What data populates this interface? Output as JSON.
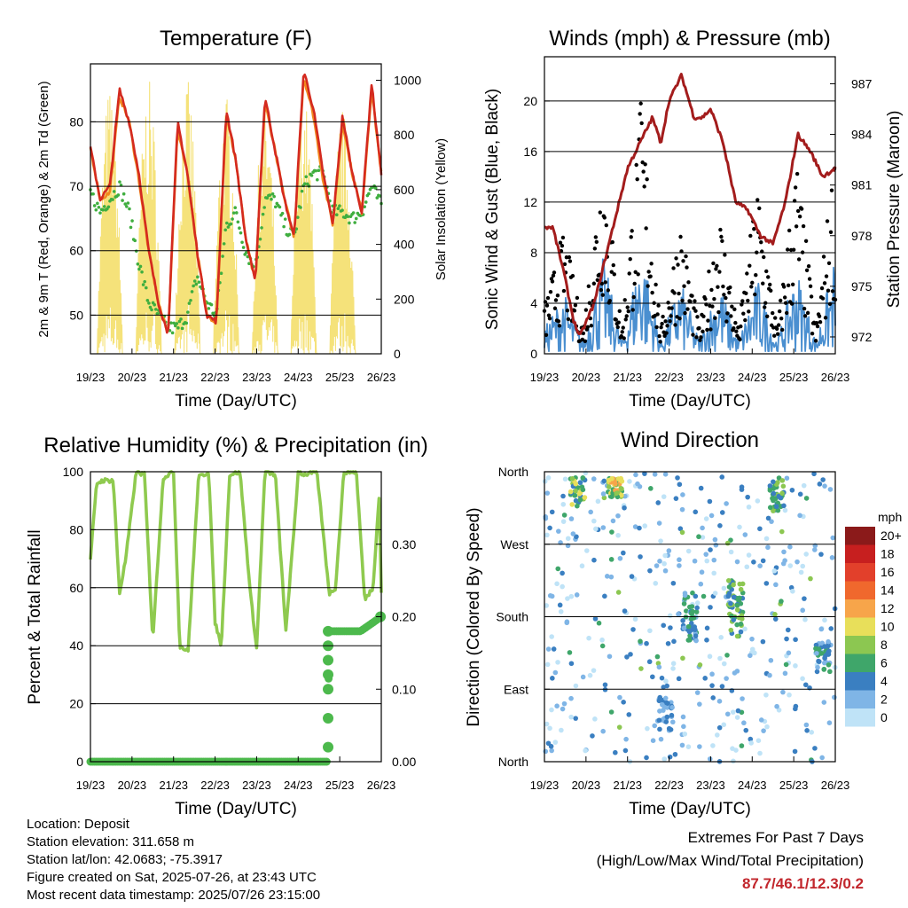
{
  "panels": {
    "temperature": {
      "title": "Temperature (F)",
      "ylabel_left": "2m & 9m T (Red, Orange) & 2m Td (Green)",
      "ylabel_right": "Solar Insolation (Yellow)",
      "xlabel": "Time (Day/UTC)"
    },
    "winds": {
      "title": "Winds (mph) & Pressure (mb)",
      "ylabel_left": "Sonic Wind & Gust (Blue, Black)",
      "ylabel_right": "Station Pressure (Maroon)",
      "xlabel": "Time (Day/UTC)"
    },
    "humidity": {
      "title": "Relative Humidity (%) & Precipitation (in)",
      "ylabel_left": "Percent & Total Rainfall",
      "xlabel": "Time (Day/UTC)"
    },
    "direction": {
      "title": "Wind Direction",
      "ylabel_left": "Direction (Colored By Speed)",
      "xlabel": "Time (Day/UTC)",
      "legend_title": "mph"
    }
  },
  "colors": {
    "temp_2m": "#d42a1f",
    "temp_9m": "#f28a1e",
    "dewpoint": "#3fae3f",
    "solar": "#f5e27a",
    "wind": "#4a8fd0",
    "gust": "#000000",
    "pressure": "#a31c1c",
    "rh": "#8fca4f",
    "precip": "#4cb94c"
  },
  "legend": {
    "labels": [
      "20+",
      "18",
      "16",
      "14",
      "12",
      "10",
      "8",
      "6",
      "4",
      "2",
      "0"
    ],
    "colors": [
      "#8b1a1a",
      "#c71f1f",
      "#e2402b",
      "#f0682d",
      "#f7a54a",
      "#e8df5a",
      "#8cc751",
      "#3fa66a",
      "#3a7fc1",
      "#7fb5e6",
      "#bfe3f7"
    ]
  },
  "footer": {
    "location": "Location: Deposit",
    "elevation": "Station elevation: 311.658 m",
    "latlon": "Station lat/lon: 42.0683; -75.3917",
    "created": "Figure created on Sat, 2025-07-26, at 23:43 UTC",
    "recent": "Most recent data timestamp: 2025/07/26 23:15:00",
    "extremes_title": "Extremes For Past 7 Days",
    "extremes_sub": "(High/Low/Max Wind/Total Precipitation)",
    "extremes_values": "87.7/46.1/12.3/0.2"
  },
  "chart_data": [
    {
      "type": "line",
      "title": "Temperature (F)",
      "xlabel": "Time (Day/UTC)",
      "ylabel": "2m & 9m T (Red, Orange) & 2m Td (Green)",
      "y2label": "Solar Insolation (Yellow)",
      "x_ticks": [
        "19/23",
        "20/23",
        "21/23",
        "22/23",
        "23/23",
        "24/23",
        "25/23",
        "26/23"
      ],
      "y_ticks": [
        50,
        60,
        70,
        80
      ],
      "y2_ticks": [
        0,
        200,
        400,
        600,
        800,
        1000
      ],
      "ylim": [
        44,
        89
      ],
      "y2lim": [
        0,
        1060
      ],
      "grid": true,
      "series": [
        {
          "name": "2m T",
          "values": [
            76,
            68,
            70,
            85,
            80,
            72,
            60,
            52,
            47,
            80,
            72,
            60,
            50,
            49,
            82,
            74,
            62,
            55,
            84,
            76,
            68,
            62,
            88,
            82,
            72,
            64,
            81,
            72,
            66,
            86,
            72
          ]
        },
        {
          "name": "9m T",
          "values": [
            76,
            68,
            69,
            84,
            80,
            71,
            60,
            52,
            47,
            79,
            72,
            60,
            50,
            49,
            81,
            74,
            62,
            55,
            83,
            76,
            68,
            62,
            87,
            81,
            71,
            64,
            80,
            72,
            66,
            85,
            72
          ]
        },
        {
          "name": "2m Td",
          "values": [
            69,
            66,
            68,
            70,
            66,
            58,
            52,
            50,
            48,
            48,
            50,
            56,
            52,
            50,
            64,
            66,
            60,
            57,
            68,
            68,
            64,
            62,
            70,
            72,
            72,
            66,
            66,
            65,
            66,
            70,
            67
          ]
        },
        {
          "name": "Solar Insolation",
          "values": [
            0,
            980,
            0,
            1000,
            0,
            1000,
            0,
            950,
            0,
            920,
            0,
            950,
            0,
            900,
            0,
            0
          ]
        }
      ]
    },
    {
      "type": "scatter",
      "title": "Winds (mph) & Pressure (mb)",
      "xlabel": "Time (Day/UTC)",
      "ylabel": "Sonic Wind & Gust (Blue, Black)",
      "y2label": "Station Pressure (Maroon)",
      "x_ticks": [
        "19/23",
        "20/23",
        "21/23",
        "22/23",
        "23/23",
        "24/23",
        "25/23",
        "26/23"
      ],
      "y_ticks": [
        0,
        4,
        8,
        12,
        16,
        20
      ],
      "y2_ticks": [
        972,
        975,
        978,
        981,
        984,
        987
      ],
      "ylim": [
        0,
        23.5
      ],
      "y2lim": [
        971,
        988.6
      ],
      "grid": true,
      "series": [
        {
          "name": "Station Pressure",
          "x": [
            0,
            0.2,
            0.45,
            0.7,
            0.85,
            1.2,
            1.5,
            1.8,
            2.0,
            2.3,
            2.6,
            2.8,
            3.0,
            3.3,
            3.6,
            3.8,
            4.0,
            4.3,
            4.6,
            4.9,
            5.2,
            5.5,
            5.8,
            6.1,
            6.4,
            6.7,
            7.0
          ],
          "values": [
            978.5,
            978.5,
            976,
            973,
            972,
            974,
            977,
            980,
            982,
            983.5,
            985,
            983.5,
            986,
            987.5,
            985,
            985,
            985.5,
            983.5,
            980,
            979.5,
            978,
            977.5,
            980,
            984,
            983,
            981.5,
            982
          ]
        },
        {
          "name": "Sonic Wind",
          "values": [
            2,
            5,
            1,
            8,
            1,
            9,
            1,
            6,
            1,
            6,
            1,
            6,
            1,
            7,
            1,
            8
          ]
        },
        {
          "name": "Gust",
          "values": [
            4,
            10,
            2,
            17,
            2,
            21,
            2,
            11,
            2,
            12,
            2,
            14,
            2,
            16,
            2,
            17
          ]
        }
      ]
    },
    {
      "type": "line",
      "title": "Relative Humidity (%) & Precipitation (in)",
      "xlabel": "Time (Day/UTC)",
      "ylabel": "Percent & Total Rainfall",
      "x_ticks": [
        "19/23",
        "20/23",
        "21/23",
        "22/23",
        "23/23",
        "24/23",
        "25/23",
        "26/23"
      ],
      "y_ticks": [
        0,
        20,
        40,
        60,
        80,
        100
      ],
      "y2_ticks": [
        "0.00",
        "0.10",
        "0.20",
        "0.30"
      ],
      "ylim": [
        0,
        100
      ],
      "y2lim": [
        0,
        0.4
      ],
      "grid": true,
      "series": [
        {
          "name": "Relative Humidity",
          "x": [
            0,
            0.15,
            0.3,
            0.55,
            0.7,
            0.85,
            1.1,
            1.3,
            1.5,
            1.75,
            2.0,
            2.15,
            2.35,
            2.6,
            2.85,
            3.0,
            3.15,
            3.35,
            3.6,
            3.85,
            4.0,
            4.2,
            4.45,
            4.7,
            4.9,
            5.0,
            5.15,
            5.45,
            5.75,
            5.9,
            6.1,
            6.4,
            6.6,
            6.8,
            6.95,
            7.0
          ],
          "values": [
            70,
            96,
            97,
            97,
            58,
            70,
            100,
            99,
            42,
            98,
            100,
            40,
            38,
            98,
            100,
            48,
            40,
            99,
            100,
            58,
            39,
            100,
            99,
            45,
            80,
            100,
            99,
            100,
            58,
            60,
            100,
            100,
            56,
            60,
            92,
            58
          ]
        },
        {
          "name": "Total Precipitation",
          "x": [
            0,
            5.7,
            5.72,
            5.74,
            5.76,
            6.0,
            6.5,
            7.0
          ],
          "values": [
            0.0,
            0.0,
            0.08,
            0.14,
            0.18,
            0.18,
            0.18,
            0.2
          ]
        }
      ]
    },
    {
      "type": "scatter",
      "title": "Wind Direction",
      "xlabel": "Time (Day/UTC)",
      "ylabel": "Direction (Colored By Speed)",
      "x_ticks": [
        "19/23",
        "20/23",
        "21/23",
        "22/23",
        "23/23",
        "24/23",
        "25/23",
        "26/23"
      ],
      "y_ticks": [
        "North",
        "East",
        "South",
        "West",
        "North"
      ],
      "ylim": [
        0,
        360
      ],
      "grid": true,
      "legend_title": "mph",
      "legend_labels": [
        "20+",
        "18",
        "16",
        "14",
        "12",
        "10",
        "8",
        "6",
        "4",
        "2",
        "0"
      ]
    }
  ]
}
